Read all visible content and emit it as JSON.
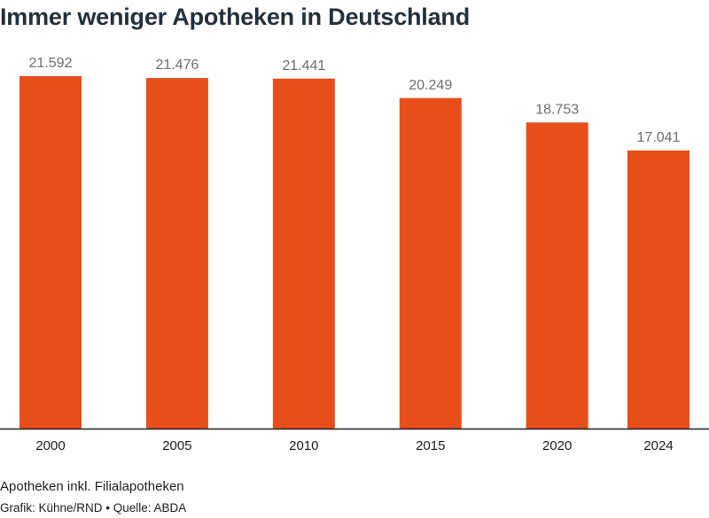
{
  "title": "Immer weniger Apotheken in Deutschland",
  "note": "Apotheken inkl. Filialapotheken",
  "credit": "Grafik: Kühne/RND • Quelle: ABDA",
  "colors": {
    "bar": "#e84e1b",
    "value_label": "#6e6e6e",
    "axis": "#1e1e1e"
  },
  "chart_data": {
    "type": "bar",
    "categories": [
      "2000",
      "2005",
      "2010",
      "2015",
      "2020",
      "2024"
    ],
    "x": [
      2000,
      2005,
      2010,
      2015,
      2020,
      2024
    ],
    "values": [
      21592,
      21476,
      21441,
      20249,
      18753,
      17041
    ],
    "value_labels": [
      "21.592",
      "21.476",
      "21.441",
      "20.249",
      "18.753",
      "17.041"
    ],
    "ylim": [
      0,
      21592
    ],
    "grid": false,
    "legend": "none"
  }
}
